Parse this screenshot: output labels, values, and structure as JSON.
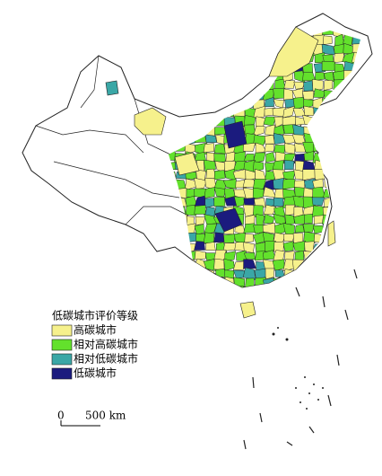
{
  "legend": {
    "title": "低碳城市评价等级",
    "items": [
      {
        "label": "高碳城市",
        "color": "#f6f18c"
      },
      {
        "label": "相对高碳城市",
        "color": "#63e12c"
      },
      {
        "label": "相对低碳城市",
        "color": "#3aa7a6"
      },
      {
        "label": "低碳城市",
        "color": "#1b1b7e"
      }
    ]
  },
  "scale_bar": {
    "labels": [
      "0",
      "500 km"
    ]
  }
}
